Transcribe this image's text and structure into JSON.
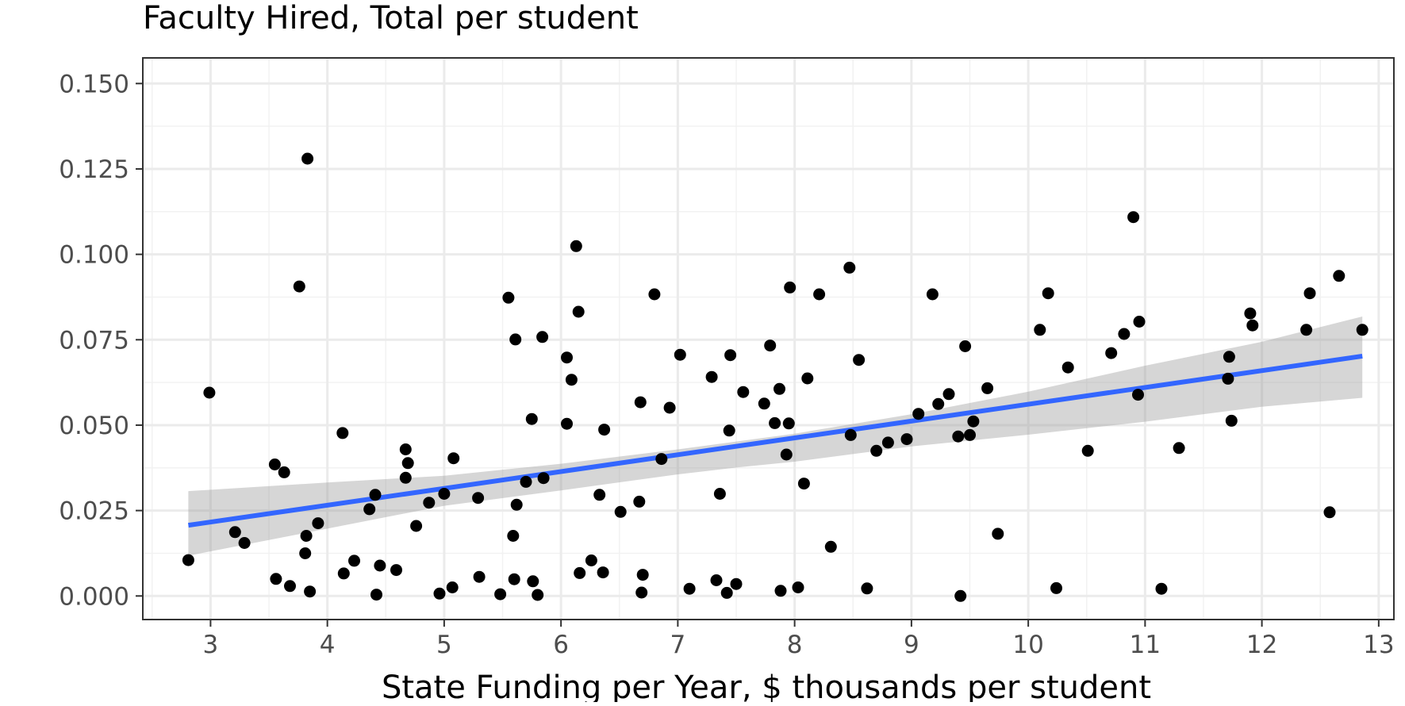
{
  "chart_data": {
    "type": "scatter",
    "title": "Faculty Hired, Total per student",
    "xlabel": "State Funding per Year, $ thousands per student",
    "ylabel": "",
    "xlim": [
      2.42,
      13.13
    ],
    "ylim": [
      -0.0069,
      0.1575
    ],
    "x_ticks": [
      3,
      4,
      5,
      6,
      7,
      8,
      9,
      10,
      11,
      12,
      13
    ],
    "y_ticks": [
      0.0,
      0.025,
      0.05,
      0.075,
      0.1,
      0.125,
      0.15
    ],
    "x_tick_labels": [
      "3",
      "4",
      "5",
      "6",
      "7",
      "8",
      "9",
      "10",
      "11",
      "12",
      "13"
    ],
    "y_tick_labels": [
      "0.000",
      "0.025",
      "0.050",
      "0.075",
      "0.100",
      "0.125",
      "0.150"
    ],
    "grid": true,
    "legend": "none",
    "colors": {
      "points": "#000000",
      "trend_line": "#3366ff",
      "confidence_band": "#999999",
      "panel_border": "#333333",
      "grid_major": "#ebebeb",
      "grid_minor": "#f2f2f2"
    },
    "series": [
      {
        "kind": "points",
        "x": [
          2.81,
          2.99,
          3.21,
          3.29,
          3.55,
          3.56,
          3.63,
          3.68,
          3.76,
          3.81,
          3.82,
          3.83,
          3.85,
          3.92,
          4.13,
          4.14,
          4.23,
          4.36,
          4.41,
          4.42,
          4.45,
          4.59,
          4.67,
          4.67,
          4.69,
          4.76,
          4.87,
          4.96,
          5.0,
          5.07,
          5.08,
          5.29,
          5.3,
          5.48,
          5.55,
          5.59,
          5.6,
          5.61,
          5.62,
          5.7,
          5.75,
          5.76,
          5.8,
          5.84,
          5.85,
          6.05,
          6.05,
          6.09,
          6.13,
          6.15,
          6.16,
          6.26,
          6.33,
          6.36,
          6.37,
          6.51,
          6.67,
          6.68,
          6.69,
          6.7,
          6.8,
          6.86,
          6.93,
          7.02,
          7.1,
          7.29,
          7.33,
          7.36,
          7.42,
          7.44,
          7.45,
          7.5,
          7.56,
          7.74,
          7.79,
          7.83,
          7.87,
          7.88,
          7.93,
          7.95,
          7.96,
          8.03,
          8.08,
          8.11,
          8.21,
          8.31,
          8.47,
          8.48,
          8.55,
          8.62,
          8.7,
          8.8,
          8.96,
          9.06,
          9.18,
          9.23,
          9.32,
          9.4,
          9.42,
          9.46,
          9.5,
          9.53,
          9.65,
          9.74,
          10.1,
          10.17,
          10.24,
          10.34,
          10.51,
          10.71,
          10.82,
          10.9,
          10.94,
          10.95,
          11.14,
          11.29,
          11.71,
          11.72,
          11.74,
          11.9,
          11.92,
          12.38,
          12.41,
          12.58,
          12.66,
          12.86
        ],
        "y": [
          0.0105,
          0.0595,
          0.0187,
          0.0155,
          0.0385,
          0.005,
          0.0362,
          0.0029,
          0.0906,
          0.0125,
          0.0176,
          0.128,
          0.0013,
          0.0213,
          0.0477,
          0.0066,
          0.0103,
          0.0254,
          0.0296,
          0.0004,
          0.0089,
          0.0076,
          0.0429,
          0.0346,
          0.0389,
          0.0205,
          0.0273,
          0.0007,
          0.0299,
          0.0025,
          0.0403,
          0.0287,
          0.0056,
          0.0005,
          0.0873,
          0.0176,
          0.0049,
          0.0751,
          0.0267,
          0.0334,
          0.0518,
          0.0043,
          0.0003,
          0.0758,
          0.0345,
          0.0504,
          0.0698,
          0.0633,
          0.1024,
          0.0832,
          0.0067,
          0.0104,
          0.0296,
          0.0069,
          0.0487,
          0.0246,
          0.0276,
          0.0567,
          0.001,
          0.0062,
          0.0883,
          0.0401,
          0.0551,
          0.0706,
          0.0021,
          0.0641,
          0.0046,
          0.0299,
          0.0009,
          0.0484,
          0.0705,
          0.0035,
          0.0597,
          0.0563,
          0.0733,
          0.0506,
          0.0606,
          0.0015,
          0.0414,
          0.0505,
          0.0903,
          0.0025,
          0.0329,
          0.0637,
          0.0883,
          0.0144,
          0.0961,
          0.0471,
          0.0691,
          0.0022,
          0.0425,
          0.0449,
          0.0459,
          0.0533,
          0.0883,
          0.0562,
          0.0591,
          0.0467,
          0.0,
          0.0731,
          0.0471,
          0.0511,
          0.0608,
          0.0182,
          0.0779,
          0.0886,
          0.0023,
          0.0669,
          0.0425,
          0.0711,
          0.0767,
          0.1109,
          0.0589,
          0.0803,
          0.0021,
          0.0433,
          0.0636,
          0.07,
          0.0513,
          0.0827,
          0.0792,
          0.0779,
          0.0886,
          0.0245,
          0.0937,
          0.0779
        ]
      },
      {
        "kind": "trend_line",
        "x": [
          2.81,
          12.86
        ],
        "y": [
          0.0207,
          0.0702
        ]
      },
      {
        "kind": "confidence_band",
        "x": [
          2.81,
          4.0,
          5.0,
          6.0,
          7.0,
          7.5,
          8.0,
          9.0,
          10.0,
          11.0,
          12.0,
          12.86
        ],
        "upper": [
          0.0307,
          0.0332,
          0.0352,
          0.0387,
          0.0429,
          0.0452,
          0.0475,
          0.0532,
          0.0598,
          0.0674,
          0.0744,
          0.0818
        ],
        "lower": [
          0.0118,
          0.0197,
          0.0264,
          0.0309,
          0.0356,
          0.0376,
          0.0393,
          0.0438,
          0.0472,
          0.051,
          0.0554,
          0.058
        ]
      }
    ]
  }
}
